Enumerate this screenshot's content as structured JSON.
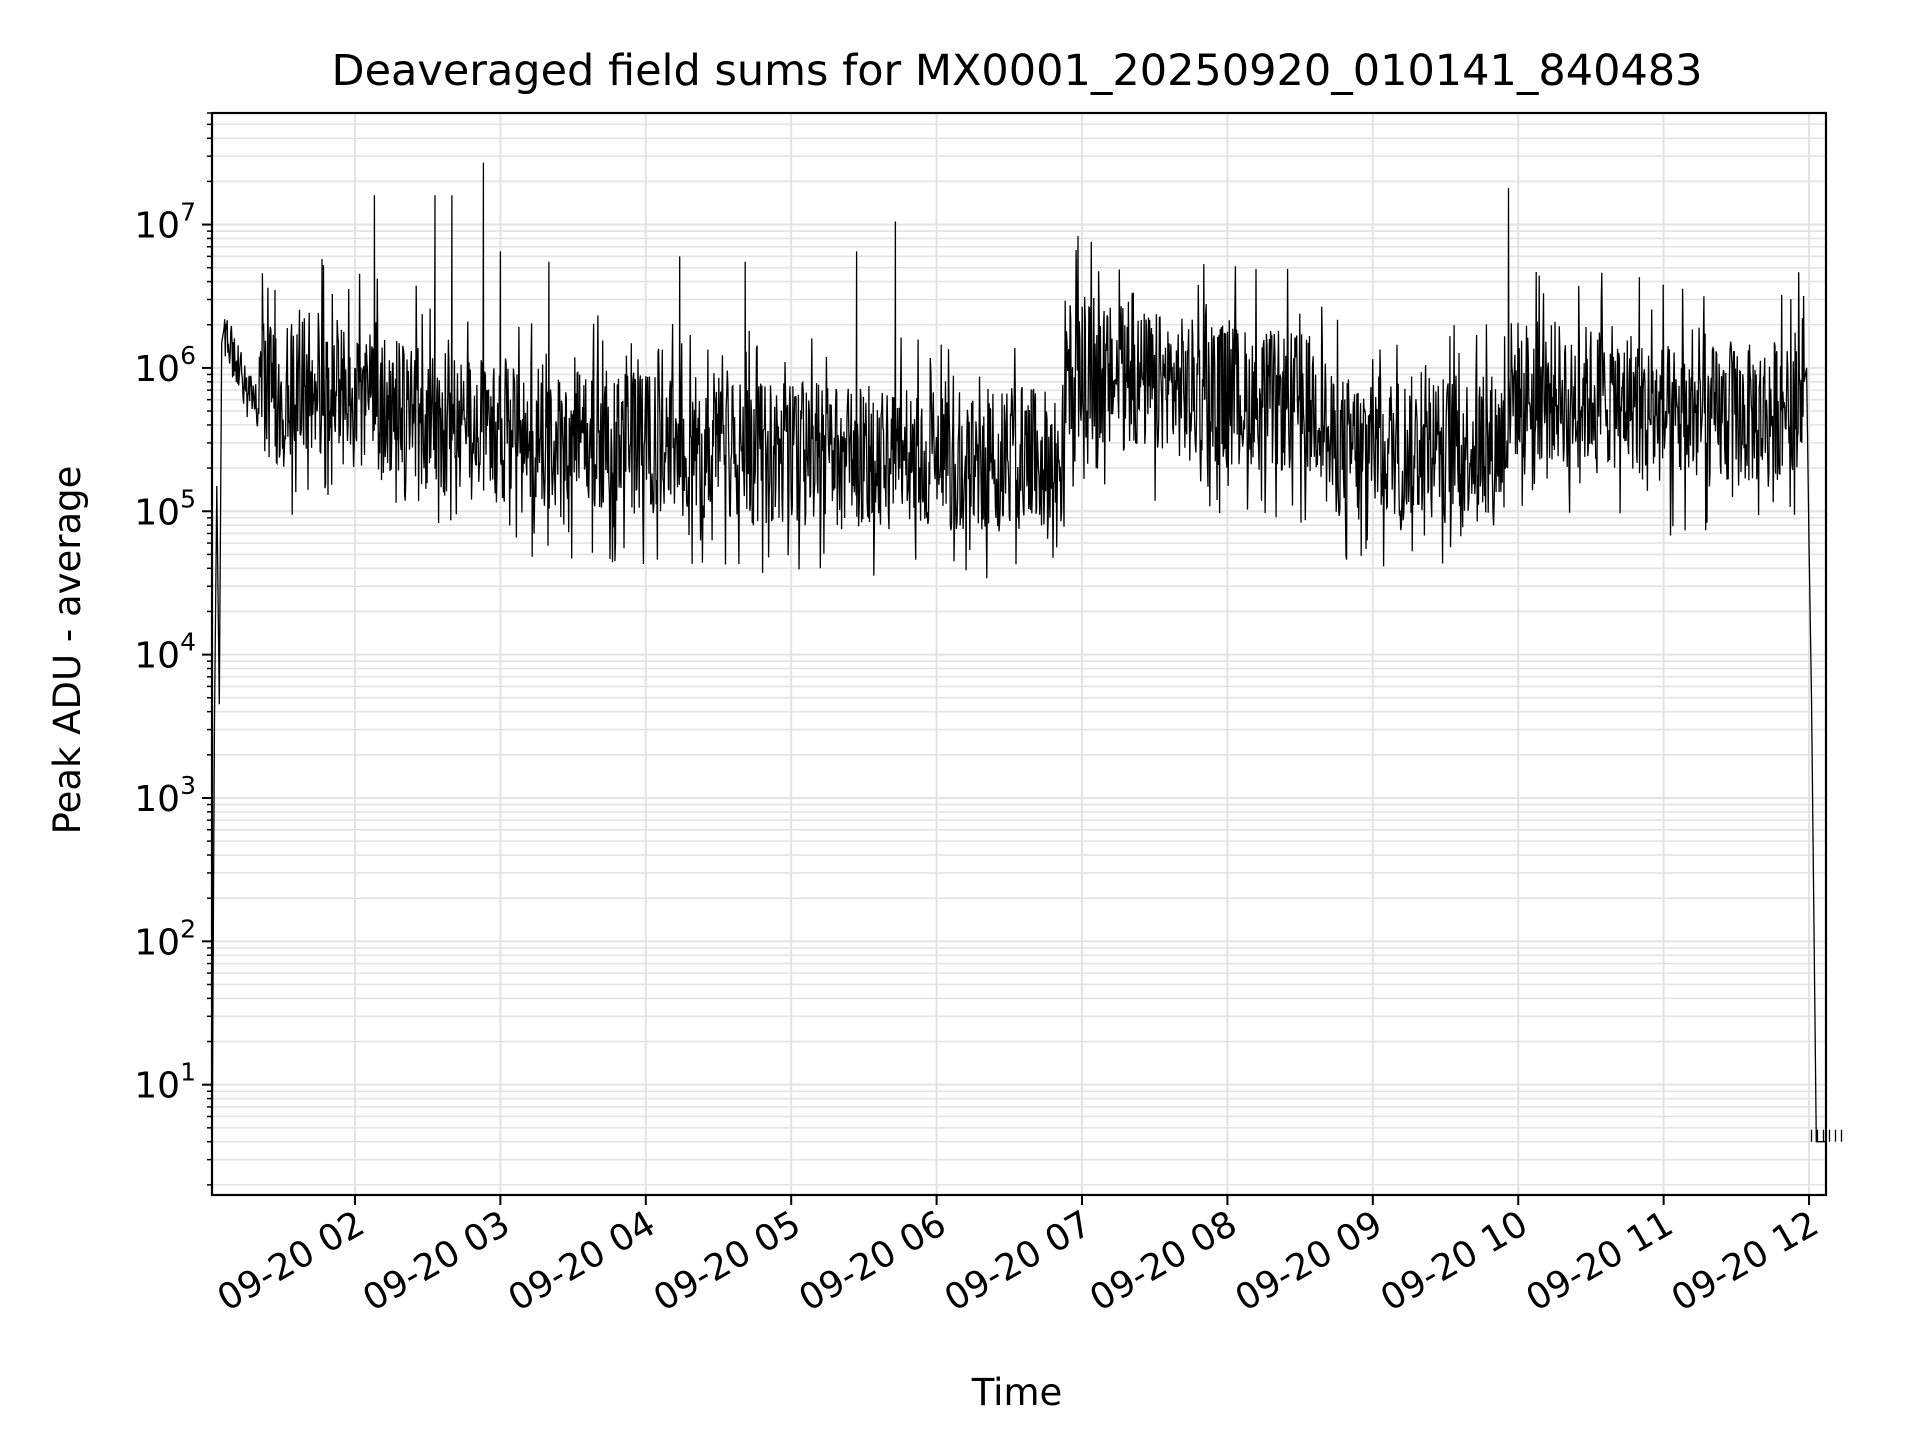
{
  "chart_data": {
    "type": "line",
    "title": "Deaveraged field sums for MX0001_20250920_010141_840483",
    "xlabel": "Time",
    "ylabel": "Peak ADU - average",
    "yscale": "log",
    "ylim": [
      1.7,
      60000000
    ],
    "xlim": [
      "2025-09-20 01:01",
      "2025-09-20 12:07"
    ],
    "x_ticks": [
      "09-20 02",
      "09-20 03",
      "09-20 04",
      "09-20 05",
      "09-20 06",
      "09-20 07",
      "09-20 08",
      "09-20 09",
      "09-20 10",
      "09-20 11",
      "09-20 12"
    ],
    "y_ticks": [
      {
        "base": "10",
        "exp": "1",
        "value": 10
      },
      {
        "base": "10",
        "exp": "2",
        "value": 100
      },
      {
        "base": "10",
        "exp": "3",
        "value": 1000
      },
      {
        "base": "10",
        "exp": "4",
        "value": 10000
      },
      {
        "base": "10",
        "exp": "5",
        "value": 100000
      },
      {
        "base": "10",
        "exp": "6",
        "value": 1000000
      },
      {
        "base": "10",
        "exp": "7",
        "value": 10000000
      }
    ],
    "grid": true,
    "series_color": "#000000",
    "series": [
      {
        "x": [
          "2025-09-20 01:01",
          "2025-09-20 01:02",
          "2025-09-20 01:03",
          "2025-09-20 01:04",
          "2025-09-20 01:05",
          "2025-09-20 01:06",
          "2025-09-20 01:10",
          "2025-09-20 01:15",
          "2025-09-20 01:20",
          "2025-09-20 01:30",
          "2025-09-20 01:40",
          "2025-09-20 01:50",
          "2025-09-20 02:00",
          "2025-09-20 02:10",
          "2025-09-20 02:20",
          "2025-09-20 02:30",
          "2025-09-20 02:40",
          "2025-09-20 02:50",
          "2025-09-20 03:00",
          "2025-09-20 03:15",
          "2025-09-20 03:30",
          "2025-09-20 03:45",
          "2025-09-20 04:00",
          "2025-09-20 04:15",
          "2025-09-20 04:30",
          "2025-09-20 04:45",
          "2025-09-20 05:00",
          "2025-09-20 05:15",
          "2025-09-20 05:30",
          "2025-09-20 05:45",
          "2025-09-20 06:00",
          "2025-09-20 06:15",
          "2025-09-20 06:30",
          "2025-09-20 06:45",
          "2025-09-20 06:52",
          "2025-09-20 06:53",
          "2025-09-20 07:00",
          "2025-09-20 07:15",
          "2025-09-20 07:30",
          "2025-09-20 07:45",
          "2025-09-20 08:00",
          "2025-09-20 08:15",
          "2025-09-20 08:30",
          "2025-09-20 08:40",
          "2025-09-20 08:41",
          "2025-09-20 09:00",
          "2025-09-20 09:15",
          "2025-09-20 09:30",
          "2025-09-20 09:45",
          "2025-09-20 09:55",
          "2025-09-20 09:56",
          "2025-09-20 10:15",
          "2025-09-20 10:30",
          "2025-09-20 10:45",
          "2025-09-20 10:50",
          "2025-09-20 10:51",
          "2025-09-20 11:00",
          "2025-09-20 11:15",
          "2025-09-20 11:30",
          "2025-09-20 11:45",
          "2025-09-20 11:55",
          "2025-09-20 11:58",
          "2025-09-20 11:59",
          "2025-09-20 12:00",
          "2025-09-20 12:01",
          "2025-09-20 12:03",
          "2025-09-20 12:05",
          "2025-09-20 12:07"
        ],
        "y": [
          2,
          3000,
          150000,
          4500,
          1500000,
          1900000,
          1200000,
          700000,
          500000,
          400000,
          600000,
          500000,
          450000,
          400000,
          350000,
          300000,
          280000,
          260000,
          250000,
          230000,
          220000,
          210000,
          200000,
          200000,
          190000,
          180000,
          180000,
          175000,
          170000,
          170000,
          165000,
          160000,
          160000,
          160000,
          160000,
          700000,
          650000,
          600000,
          550000,
          500000,
          450000,
          420000,
          400000,
          380000,
          200000,
          200000,
          200000,
          200000,
          210000,
          220000,
          500000,
          480000,
          450000,
          430000,
          420000,
          350000,
          330000,
          320000,
          320000,
          350000,
          450000,
          800000,
          1000000,
          60000,
          5000,
          4,
          4,
          4
        ],
        "peaks": [
          {
            "x": "2025-09-20 01:27",
            "y": 3500000
          },
          {
            "x": "2025-09-20 01:47",
            "y": 5200000
          },
          {
            "x": "2025-09-20 02:08",
            "y": 16000000
          },
          {
            "x": "2025-09-20 02:33",
            "y": 16000000
          },
          {
            "x": "2025-09-20 02:40",
            "y": 16000000
          },
          {
            "x": "2025-09-20 02:53",
            "y": 27000000
          },
          {
            "x": "2025-09-20 03:00",
            "y": 6500000
          },
          {
            "x": "2025-09-20 03:20",
            "y": 5500000
          },
          {
            "x": "2025-09-20 04:14",
            "y": 6000000
          },
          {
            "x": "2025-09-20 04:41",
            "y": 5500000
          },
          {
            "x": "2025-09-20 05:27",
            "y": 6500000
          },
          {
            "x": "2025-09-20 05:43",
            "y": 10500000
          },
          {
            "x": "2025-09-20 09:56",
            "y": 18000000
          },
          {
            "x": "2025-09-20 10:50",
            "y": 4300000
          }
        ]
      }
    ]
  }
}
